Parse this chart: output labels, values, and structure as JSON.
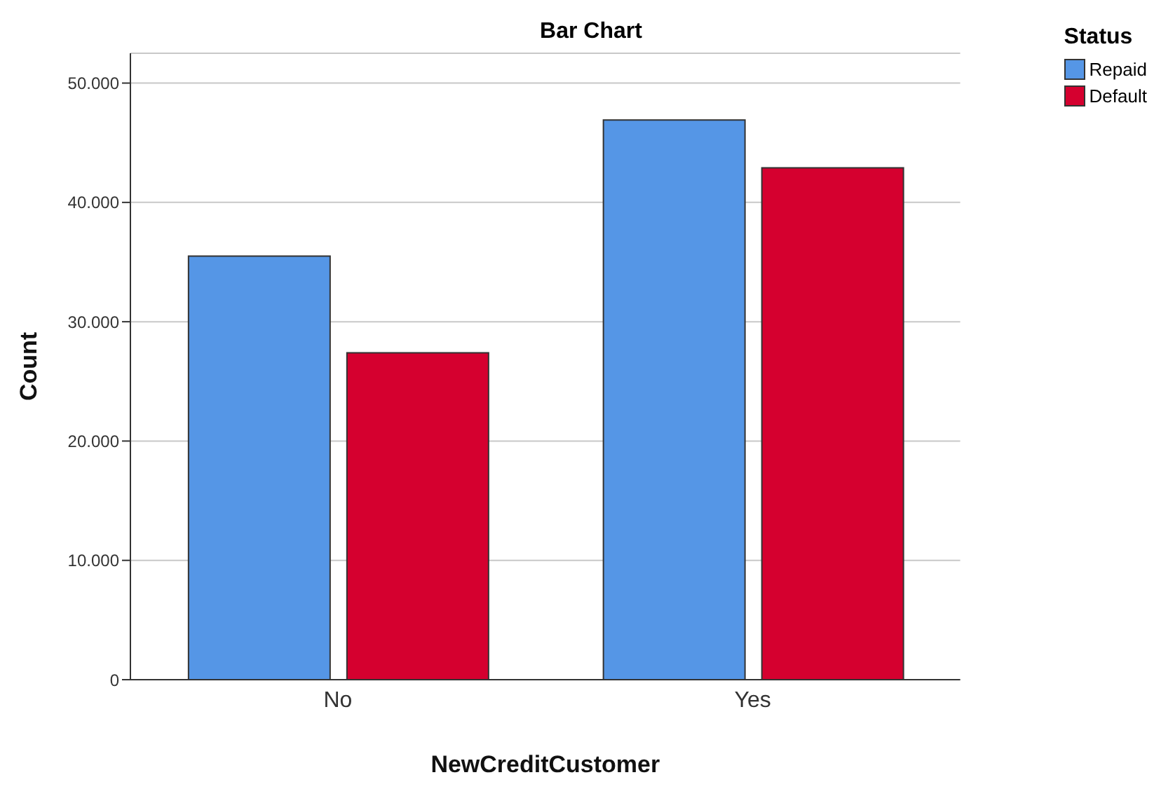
{
  "chart_data": {
    "type": "bar",
    "title": "Bar Chart",
    "xlabel": "NewCreditCustomer",
    "ylabel": "Count",
    "legend_title": "Status",
    "categories": [
      "No",
      "Yes"
    ],
    "series": [
      {
        "name": "Repaid",
        "color": "#5596e6",
        "values": [
          35500,
          46900
        ]
      },
      {
        "name": "Default",
        "color": "#d5002f",
        "values": [
          27400,
          42900
        ]
      }
    ],
    "ylim": [
      0,
      52500
    ],
    "yticks": [
      {
        "value": 0,
        "label": "0"
      },
      {
        "value": 10000,
        "label": "10.000"
      },
      {
        "value": 20000,
        "label": "20.000"
      },
      {
        "value": 30000,
        "label": "30.000"
      },
      {
        "value": 40000,
        "label": "40.000"
      },
      {
        "value": 50000,
        "label": "50.000"
      }
    ],
    "grid": "y",
    "legend": "top right"
  }
}
